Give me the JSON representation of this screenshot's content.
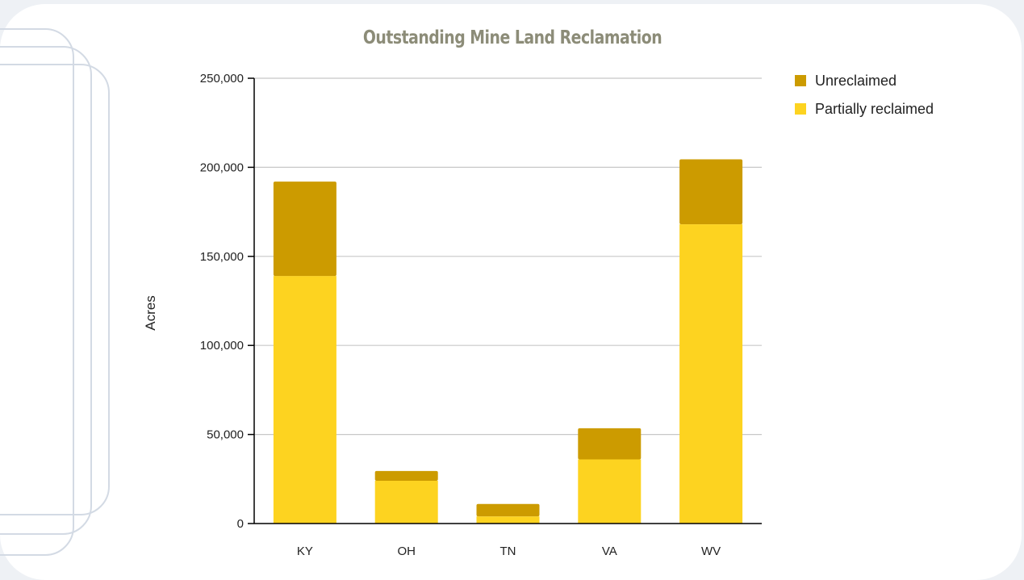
{
  "chart_data": {
    "type": "bar",
    "stacked": true,
    "title": "Outstanding Mine Land Reclamation",
    "xlabel": "",
    "ylabel": "Acres",
    "categories": [
      "KY",
      "OH",
      "TN",
      "VA",
      "WV"
    ],
    "series": [
      {
        "name": "Partially reclaimed",
        "color": "#fdd320",
        "values": [
          139000,
          24000,
          4000,
          36000,
          168000
        ]
      },
      {
        "name": "Unreclaimed",
        "color": "#cc9b00",
        "values": [
          53000,
          5500,
          7000,
          17500,
          36500
        ]
      }
    ],
    "ylim": [
      0,
      250000
    ],
    "yticks": [
      "0",
      "50,000",
      "100,000",
      "150,000",
      "200,000",
      "250,000"
    ],
    "grid": true,
    "legend_position": "top-right"
  },
  "legend": {
    "items": [
      {
        "label": "Unreclaimed",
        "color": "#cc9b00"
      },
      {
        "label": "Partially reclaimed",
        "color": "#fdd320"
      }
    ]
  }
}
